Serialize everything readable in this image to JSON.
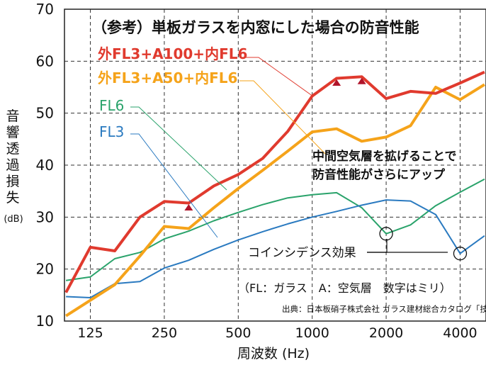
{
  "chart_data": {
    "type": "line",
    "title": "（参考）単板ガラスを内窓にした場合の防音性能",
    "ylabel_chars": [
      "音",
      "響",
      "透",
      "過",
      "損",
      "失"
    ],
    "ylabel_unit": "(dB)",
    "xlabel": "周波数 (Hz)",
    "ylim": [
      10,
      70
    ],
    "yticks": [
      10,
      20,
      30,
      40,
      50,
      60,
      70
    ],
    "x_ticks": [
      {
        "label": "125",
        "oct": 0
      },
      {
        "label": "250",
        "oct": 1
      },
      {
        "label": "500",
        "oct": 2
      },
      {
        "label": "1000",
        "oct": 3
      },
      {
        "label": "2000",
        "oct": 4
      },
      {
        "label": "4000",
        "oct": 5
      }
    ],
    "x_range_oct": [
      -0.35,
      5.35
    ],
    "series": [
      {
        "name": "外FL3+A100+内FL6",
        "color": "#e03a2e",
        "width": 4,
        "oct": [
          -0.33,
          -0.0,
          0.33,
          0.67,
          1.0,
          1.33,
          1.67,
          2.0,
          2.33,
          2.67,
          3.0,
          3.33,
          3.67,
          4.0,
          4.33,
          4.67,
          5.0,
          5.33
        ],
        "values": [
          15.5,
          24.2,
          23.5,
          30.0,
          33.0,
          32.7,
          36.0,
          38.2,
          41.3,
          46.5,
          53.3,
          56.7,
          57.0,
          52.8,
          54.2,
          53.8,
          55.8,
          57.9
        ]
      },
      {
        "name": "外FL3+A50+内FL6",
        "color": "#f5a31a",
        "width": 4,
        "oct": [
          -0.33,
          -0.0,
          0.33,
          0.67,
          1.0,
          1.33,
          1.67,
          2.0,
          2.33,
          2.67,
          3.0,
          3.33,
          3.67,
          4.0,
          4.33,
          4.67,
          5.0,
          5.33
        ],
        "values": [
          11.0,
          14.0,
          17.0,
          22.5,
          28.2,
          27.8,
          31.8,
          35.5,
          39.0,
          42.7,
          46.4,
          47.0,
          44.6,
          45.4,
          47.6,
          55.0,
          52.6,
          55.5
        ]
      },
      {
        "name": "FL6",
        "color": "#2aa36b",
        "width": 2,
        "oct": [
          -0.33,
          -0.0,
          0.33,
          0.67,
          1.0,
          1.33,
          1.67,
          2.0,
          2.33,
          2.67,
          3.0,
          3.33,
          3.67,
          4.0,
          4.33,
          4.67,
          5.0,
          5.33
        ],
        "values": [
          17.8,
          18.5,
          22.0,
          23.2,
          25.8,
          27.3,
          29.3,
          30.9,
          32.4,
          33.7,
          34.3,
          34.7,
          31.8,
          26.8,
          28.5,
          32.2,
          34.8,
          37.3
        ]
      },
      {
        "name": "FL3",
        "color": "#2a7ac0",
        "width": 2,
        "oct": [
          -0.33,
          -0.0,
          0.33,
          0.67,
          1.0,
          1.33,
          1.67,
          2.0,
          2.33,
          2.67,
          3.0,
          3.33,
          3.67,
          4.0,
          4.33,
          4.67,
          5.0,
          5.33
        ],
        "values": [
          14.7,
          14.5,
          17.2,
          17.6,
          20.2,
          21.7,
          23.8,
          25.6,
          27.2,
          28.7,
          30.0,
          31.1,
          32.3,
          33.3,
          33.1,
          30.5,
          23.0,
          26.4
        ]
      }
    ],
    "series_labels": [
      {
        "text": "外FL3+A100+内FL6",
        "color": "#e03a2e"
      },
      {
        "text": "外FL3+A50+内FL6",
        "color": "#f5a31a"
      },
      {
        "text": "FL6",
        "color": "#2aa36b"
      },
      {
        "text": "FL3",
        "color": "#2a7ac0"
      }
    ],
    "annotations": {
      "gap_note": [
        "中間空気層を拡げることで",
        "防音性能がさらにアップ"
      ],
      "coincidence": "コインシデンス効果",
      "legend_note": "（FL：ガラス　A：空気層　数字はミリ）",
      "source": "出典：日本板硝子株式会社 ガラス建材総合カタログ「技術資料編」"
    },
    "arrows": [
      {
        "oct": 1.33,
        "from": 28.0,
        "to": 32.5
      },
      {
        "oct": 3.33,
        "from": 47.0,
        "to": 56.5
      },
      {
        "oct": 3.67,
        "from": 44.8,
        "to": 56.8
      }
    ],
    "circles": [
      {
        "oct": 4.0,
        "value": 26.8
      },
      {
        "oct": 5.0,
        "value": 23.0
      }
    ]
  }
}
